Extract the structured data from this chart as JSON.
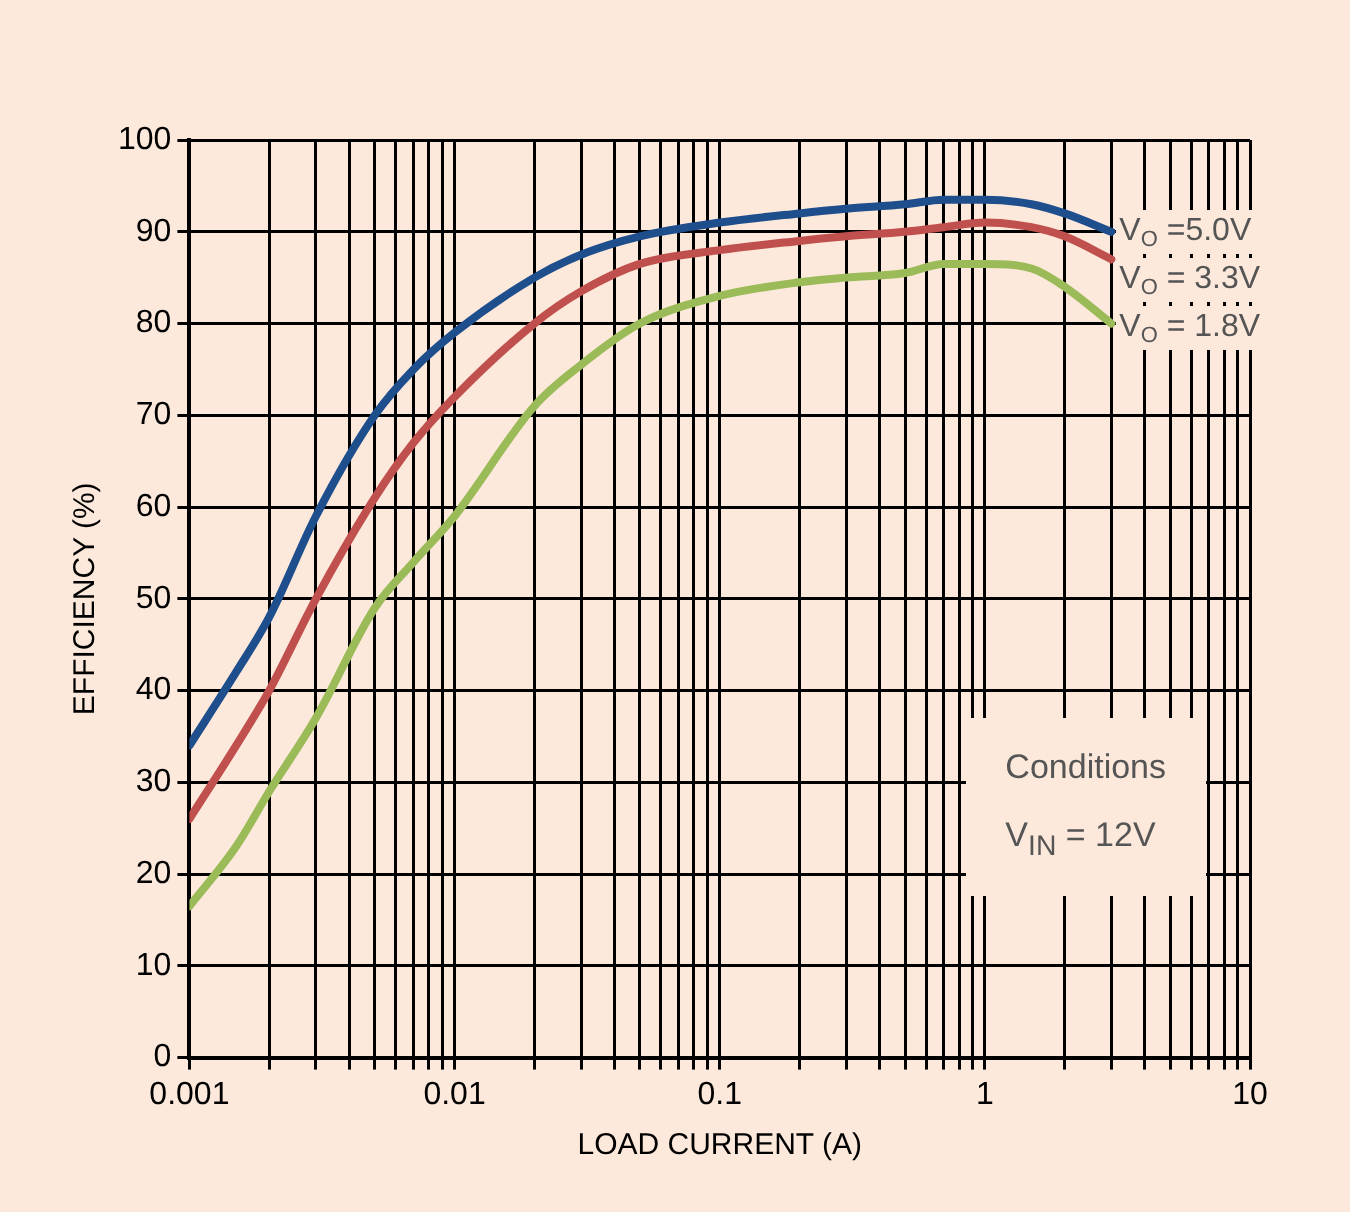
{
  "chart_data": {
    "type": "line",
    "xlabel": "LOAD CURRENT (A)",
    "ylabel": "EFFICIENCY (%)",
    "log": "x",
    "grid": true,
    "legend": false,
    "marker": "none",
    "line_style": "solid",
    "xlim": [
      0.001,
      10
    ],
    "ylim": [
      0,
      100
    ],
    "xticks": [
      0.001,
      {
        "value": 0.002,
        "label": null
      },
      {
        "value": 0.003,
        "label": null
      },
      {
        "value": 0.004,
        "label": null
      },
      {
        "value": 0.005,
        "label": null
      },
      {
        "value": 0.006,
        "label": null
      },
      {
        "value": 0.007,
        "label": null
      },
      {
        "value": 0.008,
        "label": null
      },
      {
        "value": 0.009,
        "label": null
      },
      0.01,
      {
        "value": 0.02,
        "label": null
      },
      {
        "value": 0.03,
        "label": null
      },
      {
        "value": 0.04,
        "label": null
      },
      {
        "value": 0.05,
        "label": null
      },
      {
        "value": 0.06,
        "label": null
      },
      {
        "value": 0.07,
        "label": null
      },
      {
        "value": 0.08,
        "label": null
      },
      {
        "value": 0.09,
        "label": null
      },
      0.1,
      {
        "value": 0.2,
        "label": null
      },
      {
        "value": 0.3,
        "label": null
      },
      {
        "value": 0.4,
        "label": null
      },
      {
        "value": 0.5,
        "label": null
      },
      {
        "value": 0.6,
        "label": null
      },
      {
        "value": 0.7,
        "label": null
      },
      {
        "value": 0.8,
        "label": null
      },
      {
        "value": 0.9,
        "label": null
      },
      1,
      {
        "value": 2,
        "label": null
      },
      {
        "value": 3,
        "label": null
      },
      {
        "value": 4,
        "label": null
      },
      {
        "value": 5,
        "label": null
      },
      {
        "value": 6,
        "label": null
      },
      {
        "value": 7,
        "label": null
      },
      {
        "value": 8,
        "label": null
      },
      {
        "value": 9,
        "label": null
      },
      10
    ],
    "yticks": [
      0,
      10,
      20,
      30,
      40,
      50,
      60,
      70,
      80,
      90,
      100
    ],
    "x": [
      0.001,
      0.0015,
      0.002,
      0.003,
      0.005,
      0.007,
      0.01,
      0.02,
      0.03,
      0.05,
      0.1,
      0.2,
      0.3,
      0.5,
      0.7,
      1,
      1.5,
      2,
      3
    ],
    "series": [
      {
        "name": "V$_{O}$ =5.0V",
        "color": "#1f4e8c",
        "values": [
          34,
          42,
          48,
          59,
          70,
          75,
          79,
          85,
          87.5,
          89.5,
          91,
          92,
          92.5,
          93,
          93.5,
          93.5,
          93,
          92,
          90
        ]
      },
      {
        "name": "V$_{O}$ = 3.3V",
        "color": "#c0504d",
        "values": [
          26,
          34,
          40,
          50,
          61,
          67,
          72,
          80,
          83.5,
          86.5,
          88,
          89,
          89.5,
          90,
          90.5,
          91,
          90.5,
          89.5,
          87
        ]
      },
      {
        "name": "V$_{O}$ = 1.8V",
        "color": "#9bbb59",
        "values": [
          16.5,
          23,
          29,
          37,
          49,
          54,
          59,
          71,
          75.5,
          80,
          83,
          84.5,
          85,
          85.5,
          86.5,
          86.5,
          86,
          84,
          80
        ]
      }
    ],
    "annotations": [
      "Conditions",
      "V$_{IN}$ = 12V"
    ]
  }
}
